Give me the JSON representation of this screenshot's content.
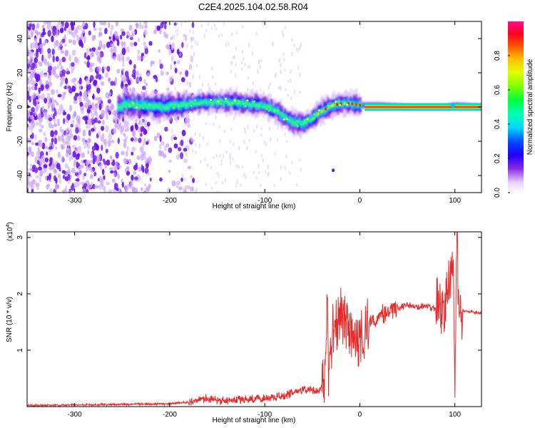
{
  "title": "C2E4.2025.104.02.58.R04",
  "chart_data": [
    {
      "type": "heatmap",
      "xlabel": "Height of straight line (km)",
      "ylabel": "Frequency (Hz)",
      "xlim": [
        -350,
        128
      ],
      "ylim": [
        -50,
        50
      ],
      "xticks": [
        -300,
        -200,
        -100,
        0,
        100
      ],
      "yticks": [
        -40,
        -20,
        0,
        20,
        40
      ],
      "colorbar": {
        "label": "Normalized spectral amplitude",
        "range": [
          0,
          1
        ],
        "ticks": [
          0.0,
          0.2,
          0.4,
          0.6,
          0.8
        ]
      },
      "ridge": {
        "x": [
          -250,
          -230,
          -210,
          -190,
          -175,
          -160,
          -140,
          -120,
          -100,
          -90,
          -80,
          -70,
          -60,
          -50,
          -40,
          -30,
          -20,
          -10,
          0,
          20,
          50,
          90,
          100,
          128
        ],
        "y": [
          2,
          1,
          0,
          1,
          2,
          3,
          3,
          2,
          1,
          -2,
          -6,
          -9,
          -10,
          -6,
          -2,
          1,
          2,
          2,
          1,
          1,
          0,
          0,
          1,
          0
        ]
      },
      "grid": false
    },
    {
      "type": "line",
      "xlabel": "Height of straight line (km)",
      "ylabel": "SNR (10 * v/v)",
      "y_multiplier": "(x10^4)",
      "xlim": [
        -350,
        128
      ],
      "ylim": [
        0,
        3.1
      ],
      "xticks": [
        -300,
        -200,
        -100,
        0,
        100
      ],
      "yticks": [
        1,
        2,
        3
      ],
      "series": [
        {
          "color": "#e82a2a",
          "x": [
            -350,
            -300,
            -250,
            -200,
            -180,
            -170,
            -160,
            -150,
            -120,
            -100,
            -80,
            -60,
            -50,
            -45,
            -40,
            -36,
            -34,
            -33,
            -32,
            -30,
            -25,
            -20,
            -15,
            -10,
            -5,
            0,
            5,
            10,
            20,
            30,
            40,
            50,
            60,
            70,
            80,
            85,
            90,
            95,
            98,
            100,
            102,
            104,
            106,
            110,
            115,
            120,
            128
          ],
          "y": [
            0.02,
            0.03,
            0.04,
            0.05,
            0.08,
            0.12,
            0.15,
            0.1,
            0.12,
            0.15,
            0.2,
            0.3,
            0.3,
            0.25,
            0.35,
            0.6,
            2.15,
            0.4,
            0.9,
            1.2,
            1.5,
            1.7,
            1.5,
            1.3,
            1.25,
            1.2,
            1.3,
            1.45,
            1.6,
            1.7,
            1.75,
            1.8,
            1.78,
            1.78,
            1.72,
            1.85,
            1.75,
            2.3,
            2.8,
            0.2,
            3.05,
            1.9,
            1.72,
            1.7,
            1.7,
            1.68,
            1.65
          ]
        }
      ],
      "grid": false
    }
  ]
}
